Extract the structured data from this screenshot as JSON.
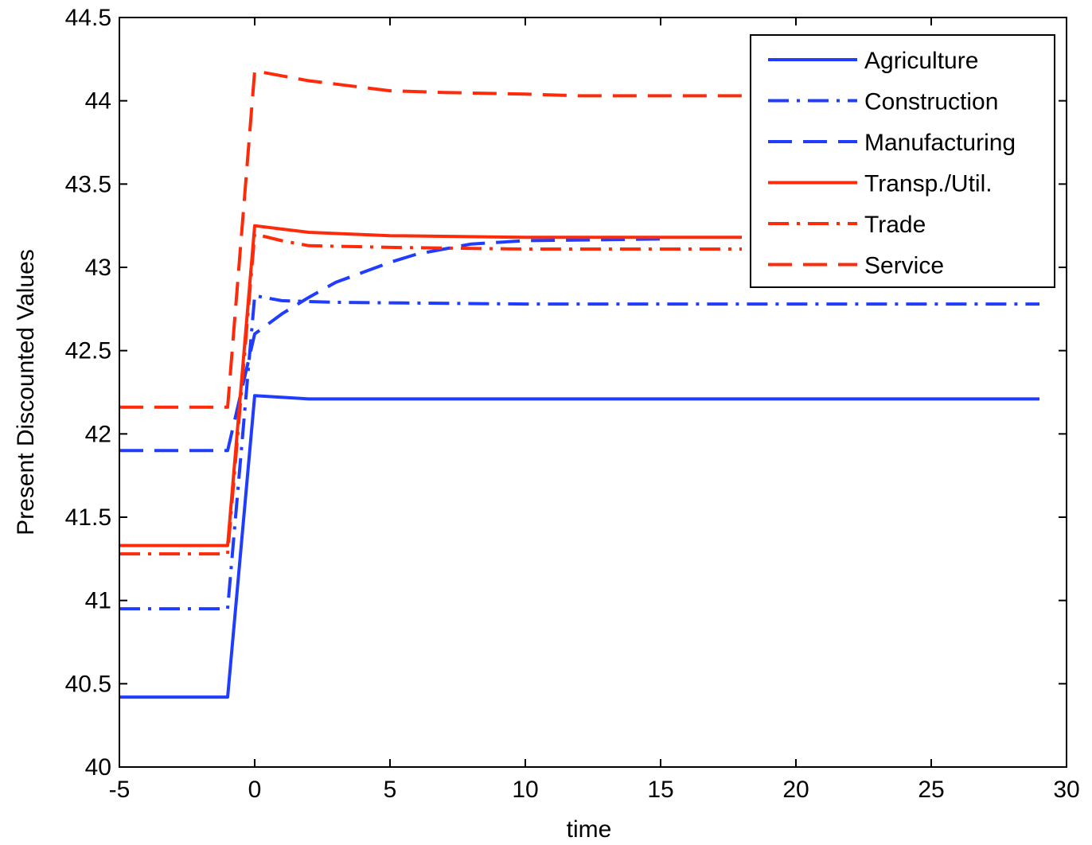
{
  "chart_data": {
    "type": "line",
    "title": "",
    "xlabel": "time",
    "ylabel": "Present Discounted Values",
    "xlim": [
      -5,
      30
    ],
    "ylim": [
      40,
      44.5
    ],
    "xticks": [
      -5,
      0,
      5,
      10,
      15,
      20,
      25,
      30
    ],
    "xtick_labels": [
      "-5",
      "0",
      "5",
      "10",
      "15",
      "20",
      "25",
      "30"
    ],
    "yticks": [
      40,
      40.5,
      41,
      41.5,
      42,
      42.5,
      43,
      43.5,
      44,
      44.5
    ],
    "ytick_labels": [
      "40",
      "40.5",
      "41",
      "41.5",
      "42",
      "42.5",
      "43",
      "43.5",
      "44",
      "44.5"
    ],
    "grid": false,
    "legend_position": "top-right",
    "series": [
      {
        "name": "Agriculture",
        "color": "#1f3cff",
        "style": "solid",
        "x": [
          -5,
          -1,
          0,
          2,
          5,
          10,
          20,
          29
        ],
        "y": [
          40.42,
          40.42,
          42.23,
          42.21,
          42.21,
          42.21,
          42.21,
          42.21
        ]
      },
      {
        "name": "Construction",
        "color": "#1f3cff",
        "style": "dashdot",
        "x": [
          -5,
          -1,
          0,
          1,
          3,
          10,
          20,
          29
        ],
        "y": [
          40.95,
          40.95,
          42.83,
          42.8,
          42.79,
          42.78,
          42.78,
          42.78
        ]
      },
      {
        "name": "Manufacturing",
        "color": "#1f3cff",
        "style": "dashed",
        "x": [
          -5,
          -1,
          0,
          1,
          2,
          3,
          4,
          5,
          6,
          7,
          8,
          10,
          15
        ],
        "y": [
          41.9,
          41.9,
          42.6,
          42.72,
          42.82,
          42.91,
          42.97,
          43.03,
          43.08,
          43.11,
          43.14,
          43.16,
          43.17
        ]
      },
      {
        "name": "Transp./Util.",
        "color": "#ff2a0a",
        "style": "solid",
        "x": [
          -5,
          -1,
          0,
          1,
          2,
          5,
          10,
          18
        ],
        "y": [
          41.33,
          41.33,
          43.25,
          43.23,
          43.21,
          43.19,
          43.18,
          43.18
        ]
      },
      {
        "name": "Trade",
        "color": "#ff2a0a",
        "style": "dashdot",
        "x": [
          -5,
          -1,
          0,
          1,
          2,
          5,
          10,
          18
        ],
        "y": [
          41.28,
          41.28,
          43.2,
          43.16,
          43.13,
          43.12,
          43.11,
          43.11
        ]
      },
      {
        "name": "Service",
        "color": "#ff2a0a",
        "style": "dashed",
        "x": [
          -5,
          -1,
          0,
          1,
          2,
          3,
          4,
          5,
          7,
          10,
          12,
          18
        ],
        "y": [
          42.16,
          42.16,
          44.18,
          44.15,
          44.12,
          44.1,
          44.08,
          44.06,
          44.05,
          44.04,
          44.03,
          44.03
        ]
      }
    ]
  }
}
